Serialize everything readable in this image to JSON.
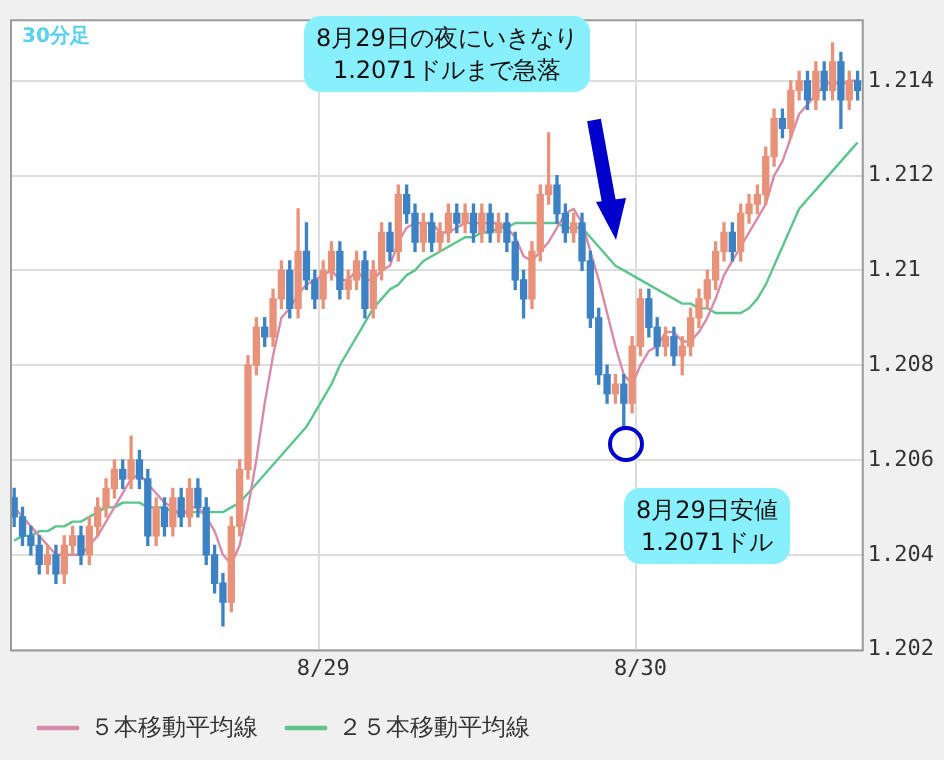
{
  "chart_data": {
    "type": "candlestick",
    "title": "30分足",
    "annotations": [
      "8月29日の夜にいきなり\n1.2071ドルまで急落",
      "8月29日安値\n1.2071ドル"
    ],
    "categories": [
      null,
      null,
      null,
      null,
      null,
      null,
      null,
      null,
      null,
      null,
      null,
      null,
      null,
      null,
      null,
      null,
      null,
      null,
      null,
      null,
      null,
      null,
      null,
      null,
      null,
      null,
      null,
      null,
      null,
      null,
      null,
      null,
      null,
      null,
      null,
      null,
      null,
      "8/29",
      null,
      null,
      null,
      null,
      null,
      null,
      null,
      null,
      null,
      null,
      null,
      null,
      null,
      null,
      null,
      null,
      null,
      null,
      null,
      null,
      null,
      null,
      null,
      null,
      null,
      null,
      null,
      null,
      null,
      null,
      null,
      null,
      null,
      null,
      null,
      null,
      null,
      "8/30",
      null,
      null,
      null,
      null,
      null,
      null,
      null,
      null,
      null,
      null,
      null,
      null,
      null,
      null,
      null,
      null,
      null,
      null,
      null,
      null,
      null,
      null,
      null,
      null,
      null,
      null
    ],
    "colors": [
      "#3c82c4",
      "#3c82c4",
      "#3c82c4",
      "#3c82c4",
      "#e8927a",
      "#3c82c4",
      "#e8927a",
      "#e8927a",
      "#3c82c4",
      "#e8927a",
      "#e8927a",
      "#e8927a",
      "#e8927a",
      "#3c82c4",
      "#e8927a",
      "#3c82c4",
      "#3c82c4",
      "#e8927a",
      "#3c82c4",
      "#e8927a",
      "#3c82c4",
      "#e8927a",
      "#3c82c4",
      "#3c82c4",
      "#3c82c4",
      "#3c82c4",
      "#e8927a",
      "#e8927a",
      "#e8927a",
      "#e8927a",
      "#3c82c4",
      "#e8927a",
      "#e8927a",
      "#3c82c4",
      "#e8927a",
      "#3c82c4",
      "#3c82c4",
      "#e8927a",
      "#e8927a",
      "#3c82c4",
      "#e8927a",
      "#e8927a",
      "#3c82c4",
      "#e8927a",
      "#e8927a",
      "#3c82c4",
      "#e8927a",
      "#3c82c4",
      "#3c82c4",
      "#e8927a",
      "#3c82c4",
      "#e8927a",
      "#e8927a",
      "#3c82c4",
      "#e8927a",
      "#3c82c4",
      "#e8927a",
      "#3c82c4",
      "#e8927a",
      "#3c82c4",
      "#3c82c4",
      "#3c82c4",
      "#e8927a",
      "#e8927a",
      "#e8927a",
      "#3c82c4",
      "#3c82c4",
      "#e8927a",
      "#3c82c4",
      "#3c82c4",
      "#3c82c4",
      "#3c82c4",
      "#e8927a",
      "#3c82c4",
      "#e8927a",
      "#e8927a",
      "#3c82c4",
      "#3c82c4",
      "#e8927a",
      "#3c82c4",
      "#e8927a",
      "#e8927a",
      "#e8927a",
      "#e8927a",
      "#e8927a",
      "#e8927a",
      "#3c82c4",
      "#e8927a",
      "#e8927a",
      "#e8927a",
      "#e8927a",
      "#e8927a",
      "#3c82c4",
      "#e8927a",
      "#e8927a",
      "#3c82c4",
      "#e8927a",
      "#3c82c4",
      "#e8927a",
      "#3c82c4",
      "#e8927a",
      "#3c82c4"
    ],
    "ohlc": [
      [
        1.2052,
        1.2054,
        1.2046,
        1.2048
      ],
      [
        1.2048,
        1.205,
        1.2042,
        1.2044
      ],
      [
        1.2044,
        1.2046,
        1.204,
        1.2042
      ],
      [
        1.2042,
        1.2044,
        1.2036,
        1.2038
      ],
      [
        1.2038,
        1.2042,
        1.2036,
        1.204
      ],
      [
        1.204,
        1.2042,
        1.2034,
        1.2036
      ],
      [
        1.2036,
        1.2044,
        1.2034,
        1.2042
      ],
      [
        1.2042,
        1.2046,
        1.204,
        1.2044
      ],
      [
        1.2044,
        1.2046,
        1.2038,
        1.204
      ],
      [
        1.204,
        1.2048,
        1.2038,
        1.2046
      ],
      [
        1.2046,
        1.2052,
        1.2044,
        1.205
      ],
      [
        1.205,
        1.2056,
        1.2048,
        1.2054
      ],
      [
        1.2054,
        1.206,
        1.2052,
        1.2058
      ],
      [
        1.2058,
        1.206,
        1.2054,
        1.2056
      ],
      [
        1.2056,
        1.2065,
        1.2054,
        1.206
      ],
      [
        1.206,
        1.2062,
        1.2054,
        1.2056
      ],
      [
        1.2056,
        1.2058,
        1.2042,
        1.2044
      ],
      [
        1.2044,
        1.2052,
        1.2042,
        1.205
      ],
      [
        1.205,
        1.2052,
        1.2044,
        1.2046
      ],
      [
        1.2046,
        1.2054,
        1.2044,
        1.2052
      ],
      [
        1.2052,
        1.2054,
        1.2046,
        1.2048
      ],
      [
        1.2048,
        1.2056,
        1.2046,
        1.2054
      ],
      [
        1.2054,
        1.2056,
        1.2048,
        1.205
      ],
      [
        1.205,
        1.2052,
        1.2038,
        1.204
      ],
      [
        1.204,
        1.2042,
        1.2032,
        1.2034
      ],
      [
        1.2034,
        1.2036,
        1.2025,
        1.203
      ],
      [
        1.203,
        1.2048,
        1.2028,
        1.2046
      ],
      [
        1.2046,
        1.206,
        1.2044,
        1.2058
      ],
      [
        1.2058,
        1.2082,
        1.2056,
        1.208
      ],
      [
        1.208,
        1.209,
        1.2078,
        1.2088
      ],
      [
        1.2088,
        1.209,
        1.2084,
        1.2086
      ],
      [
        1.2086,
        1.2096,
        1.2084,
        1.2094
      ],
      [
        1.2094,
        1.2102,
        1.2092,
        1.21
      ],
      [
        1.21,
        1.2102,
        1.209,
        1.2092
      ],
      [
        1.2092,
        1.2113,
        1.209,
        1.2104
      ],
      [
        1.2104,
        1.211,
        1.2096,
        1.2098
      ],
      [
        1.2098,
        1.21,
        1.2092,
        1.2094
      ],
      [
        1.2094,
        1.2102,
        1.2092,
        1.21
      ],
      [
        1.21,
        1.2106,
        1.2098,
        1.2104
      ],
      [
        1.2104,
        1.2106,
        1.2094,
        1.2096
      ],
      [
        1.2096,
        1.21,
        1.2094,
        1.2098
      ],
      [
        1.2098,
        1.2104,
        1.2096,
        1.2102
      ],
      [
        1.2102,
        1.2104,
        1.209,
        1.2092
      ],
      [
        1.2092,
        1.2102,
        1.209,
        1.21
      ],
      [
        1.21,
        1.211,
        1.2098,
        1.2108
      ],
      [
        1.2108,
        1.211,
        1.2102,
        1.2104
      ],
      [
        1.2104,
        1.2118,
        1.2102,
        1.2116
      ],
      [
        1.2116,
        1.2118,
        1.211,
        1.2112
      ],
      [
        1.2112,
        1.2114,
        1.2104,
        1.2106
      ],
      [
        1.2106,
        1.2112,
        1.2104,
        1.211
      ],
      [
        1.211,
        1.2112,
        1.2104,
        1.2106
      ],
      [
        1.2106,
        1.211,
        1.2104,
        1.2108
      ],
      [
        1.2108,
        1.2114,
        1.2106,
        1.2112
      ],
      [
        1.2112,
        1.2114,
        1.2108,
        1.211
      ],
      [
        1.211,
        1.2114,
        1.2108,
        1.2112
      ],
      [
        1.2112,
        1.2114,
        1.2106,
        1.2108
      ],
      [
        1.2108,
        1.2114,
        1.2106,
        1.2112
      ],
      [
        1.2112,
        1.2114,
        1.2106,
        1.2108
      ],
      [
        1.2108,
        1.2112,
        1.2106,
        1.211
      ],
      [
        1.211,
        1.2112,
        1.2104,
        1.2106
      ],
      [
        1.2106,
        1.2108,
        1.2096,
        1.2098
      ],
      [
        1.2098,
        1.21,
        1.209,
        1.2094
      ],
      [
        1.2094,
        1.2106,
        1.2092,
        1.2104
      ],
      [
        1.2104,
        1.2118,
        1.2102,
        1.2116
      ],
      [
        1.2116,
        1.2129,
        1.2114,
        1.2118
      ],
      [
        1.2118,
        1.212,
        1.211,
        1.2112
      ],
      [
        1.2112,
        1.2114,
        1.2106,
        1.2108
      ],
      [
        1.2108,
        1.2112,
        1.2106,
        1.211
      ],
      [
        1.211,
        1.2112,
        1.21,
        1.2102
      ],
      [
        1.2102,
        1.2104,
        1.2088,
        1.209
      ],
      [
        1.209,
        1.2092,
        1.2076,
        1.2078
      ],
      [
        1.2078,
        1.208,
        1.2072,
        1.2074
      ],
      [
        1.2074,
        1.2078,
        1.2072,
        1.2076
      ],
      [
        1.2076,
        1.2078,
        1.2067,
        1.2072
      ],
      [
        1.2072,
        1.2086,
        1.207,
        1.2084
      ],
      [
        1.2084,
        1.2096,
        1.2082,
        1.2094
      ],
      [
        1.2094,
        1.2096,
        1.2086,
        1.2088
      ],
      [
        1.2088,
        1.209,
        1.2082,
        1.2084
      ],
      [
        1.2084,
        1.2088,
        1.2082,
        1.2086
      ],
      [
        1.2086,
        1.2088,
        1.208,
        1.2082
      ],
      [
        1.2082,
        1.2086,
        1.2078,
        1.2084
      ],
      [
        1.2084,
        1.2092,
        1.2082,
        1.209
      ],
      [
        1.209,
        1.2096,
        1.2088,
        1.2094
      ],
      [
        1.2094,
        1.21,
        1.2092,
        1.2098
      ],
      [
        1.2098,
        1.2106,
        1.2096,
        1.2104
      ],
      [
        1.2104,
        1.211,
        1.2102,
        1.2108
      ],
      [
        1.2108,
        1.211,
        1.2102,
        1.2104
      ],
      [
        1.2104,
        1.2114,
        1.2102,
        1.2112
      ],
      [
        1.2112,
        1.2116,
        1.211,
        1.2114
      ],
      [
        1.2114,
        1.2118,
        1.2112,
        1.2116
      ],
      [
        1.2116,
        1.2126,
        1.2114,
        1.2124
      ],
      [
        1.2124,
        1.2134,
        1.2122,
        1.2132
      ],
      [
        1.2132,
        1.2134,
        1.2128,
        1.213
      ],
      [
        1.213,
        1.214,
        1.2128,
        1.2138
      ],
      [
        1.2138,
        1.2142,
        1.2136,
        1.214
      ],
      [
        1.214,
        1.2142,
        1.2134,
        1.2136
      ],
      [
        1.2136,
        1.2144,
        1.2134,
        1.2142
      ],
      [
        1.2142,
        1.2144,
        1.2136,
        1.2138
      ],
      [
        1.2138,
        1.2148,
        1.2136,
        1.2144
      ],
      [
        1.2144,
        1.2146,
        1.213,
        1.2136
      ],
      [
        1.2136,
        1.2142,
        1.2134,
        1.214
      ],
      [
        1.214,
        1.2142,
        1.2136,
        1.2138
      ]
    ],
    "series": [
      {
        "type": "line",
        "name": "５本移動平均線",
        "color": "#d98aa8",
        "values": [
          1.205,
          1.2048,
          1.2046,
          1.2044,
          1.2042,
          1.204,
          1.204,
          1.204,
          1.204,
          1.2042,
          1.2044,
          1.2047,
          1.205,
          1.2053,
          1.2056,
          1.2057,
          1.2055,
          1.2053,
          1.2051,
          1.205,
          1.2048,
          1.205,
          1.205,
          1.2048,
          1.2045,
          1.204,
          1.2038,
          1.2042,
          1.205,
          1.206,
          1.2072,
          1.2082,
          1.209,
          1.2092,
          1.2095,
          1.2097,
          1.2098,
          1.2099,
          1.21,
          1.2098,
          1.2098,
          1.21,
          1.2098,
          1.2098,
          1.21,
          1.2101,
          1.2106,
          1.2109,
          1.211,
          1.211,
          1.211,
          1.2108,
          1.2108,
          1.2109,
          1.211,
          1.211,
          1.211,
          1.211,
          1.211,
          1.2109,
          1.2107,
          1.2103,
          1.2102,
          1.2104,
          1.2106,
          1.2109,
          1.2112,
          1.2113,
          1.211,
          1.2104,
          1.2098,
          1.2091,
          1.2084,
          1.2078,
          1.2076,
          1.208,
          1.2083,
          1.2084,
          1.2087,
          1.2087,
          1.2085,
          1.2085,
          1.2087,
          1.209,
          1.2094,
          1.2099,
          1.2102,
          1.2105,
          1.2108,
          1.2111,
          1.2114,
          1.212,
          1.2123,
          1.2128,
          1.2133,
          1.2135,
          1.2137,
          1.2139,
          1.214,
          1.2139,
          1.214,
          1.214
        ]
      },
      {
        "type": "line",
        "name": "２５本移動平均線",
        "color": "#5cc48c",
        "values": [
          1.2043,
          1.2044,
          1.2044,
          1.2045,
          1.2045,
          1.2046,
          1.2046,
          1.2047,
          1.2047,
          1.2048,
          1.2049,
          1.205,
          1.205,
          1.2051,
          1.2051,
          1.2051,
          1.205,
          1.205,
          1.205,
          1.2049,
          1.2049,
          1.2049,
          1.2049,
          1.2049,
          1.2049,
          1.2049,
          1.205,
          1.2051,
          1.2053,
          1.2055,
          1.2057,
          1.2059,
          1.2061,
          1.2063,
          1.2065,
          1.2067,
          1.207,
          1.2073,
          1.2076,
          1.208,
          1.2083,
          1.2086,
          1.2089,
          1.2092,
          1.2094,
          1.2096,
          1.2097,
          1.2099,
          1.21,
          1.2102,
          1.2103,
          1.2104,
          1.2105,
          1.2106,
          1.2107,
          1.2107,
          1.2108,
          1.2108,
          1.2109,
          1.2109,
          1.211,
          1.211,
          1.211,
          1.211,
          1.211,
          1.211,
          1.2109,
          1.2109,
          1.2109,
          1.2107,
          1.2105,
          1.2103,
          1.2101,
          1.21,
          1.2099,
          1.2098,
          1.2097,
          1.2096,
          1.2095,
          1.2094,
          1.2093,
          1.2093,
          1.2092,
          1.2092,
          1.2091,
          1.2091,
          1.2091,
          1.2091,
          1.2092,
          1.2094,
          1.2097,
          1.2101,
          1.2105,
          1.2109,
          1.2113,
          1.2115,
          1.2117,
          1.2119,
          1.2121,
          1.2123,
          1.2125,
          1.2127
        ]
      }
    ],
    "ylim": [
      1.202,
      1.2153
    ],
    "yticks": [
      1.202,
      1.204,
      1.206,
      1.208,
      1.21,
      1.212,
      1.214
    ],
    "grid": true,
    "legend": "bottom",
    "marker": "none"
  }
}
